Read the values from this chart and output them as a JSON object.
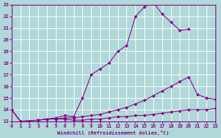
{
  "background_color": "#b0d8d8",
  "grid_color": "#ffffff",
  "line_color": "#880088",
  "xlabel": "Windchill (Refroidissement éolien,°C)",
  "xlim": [
    0,
    23
  ],
  "ylim": [
    13,
    23
  ],
  "yticks": [
    13,
    14,
    15,
    16,
    17,
    18,
    19,
    20,
    21,
    22,
    23
  ],
  "xticks": [
    0,
    1,
    2,
    3,
    4,
    5,
    6,
    7,
    8,
    9,
    10,
    11,
    12,
    13,
    14,
    15,
    16,
    17,
    18,
    19,
    20,
    21,
    22,
    23
  ],
  "line_a_x": [
    0,
    1,
    3,
    4,
    5,
    6,
    7,
    8,
    9,
    10,
    11,
    12,
    13,
    14,
    15,
    16,
    17,
    18,
    19,
    20
  ],
  "line_a_y": [
    14,
    13,
    13.1,
    13.2,
    13.3,
    13.5,
    13.4,
    15.0,
    17.0,
    17.5,
    18.0,
    19.0,
    19.5,
    22.0,
    22.8,
    23.2,
    22.2,
    21.5,
    20.8,
    20.9
  ],
  "line_b_x": [
    0,
    1,
    3,
    4,
    5,
    6,
    7,
    8,
    9,
    10,
    11,
    12,
    13,
    14,
    15,
    16,
    17,
    18,
    19,
    20,
    21,
    22,
    23
  ],
  "line_b_y": [
    14,
    13,
    13.1,
    13.2,
    13.2,
    13.3,
    13.3,
    13.4,
    13.5,
    13.6,
    13.8,
    14.0,
    14.2,
    14.5,
    14.8,
    15.2,
    15.6,
    16.0,
    16.4,
    16.8,
    15.3,
    15.0,
    14.9
  ],
  "line_c_x": [
    0,
    1,
    3,
    4,
    5,
    6,
    7,
    8,
    9,
    10,
    11,
    12,
    13,
    14,
    15,
    16,
    17,
    18,
    19,
    20,
    21,
    22,
    23
  ],
  "line_c_y": [
    14,
    13,
    13.1,
    13.2,
    13.2,
    13.2,
    13.1,
    13.1,
    13.2,
    13.2,
    13.3,
    13.4,
    13.4,
    13.5,
    13.5,
    13.6,
    13.7,
    13.8,
    13.9,
    14.0,
    14.0,
    14.0,
    14.1
  ]
}
